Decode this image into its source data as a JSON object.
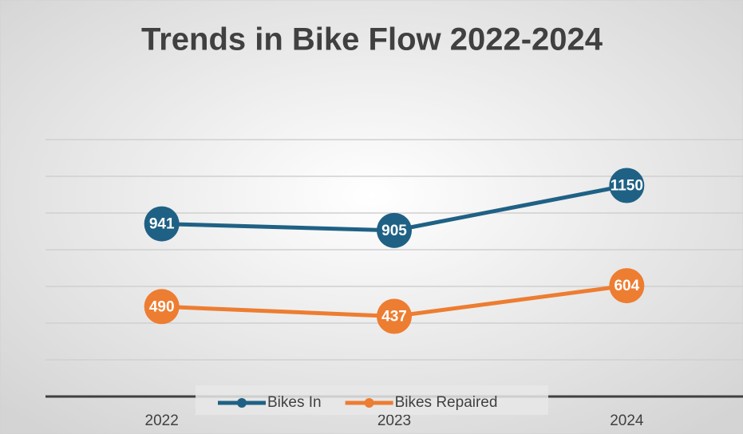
{
  "chart_data": {
    "type": "line",
    "title": "Trends in Bike Flow 2022-2024",
    "categories": [
      "2022",
      "2023",
      "2024"
    ],
    "series": [
      {
        "name": "Bikes In",
        "color": "#1f6185",
        "values": [
          941,
          905,
          1150
        ]
      },
      {
        "name": "Bikes Repaired",
        "color": "#ed7d31",
        "values": [
          490,
          437,
          604
        ]
      }
    ],
    "ylim": [
      0,
      1400
    ],
    "yticks": [
      0,
      200,
      400,
      600,
      800,
      1000,
      1200,
      1400
    ],
    "grid": true,
    "legend": "bottom"
  }
}
